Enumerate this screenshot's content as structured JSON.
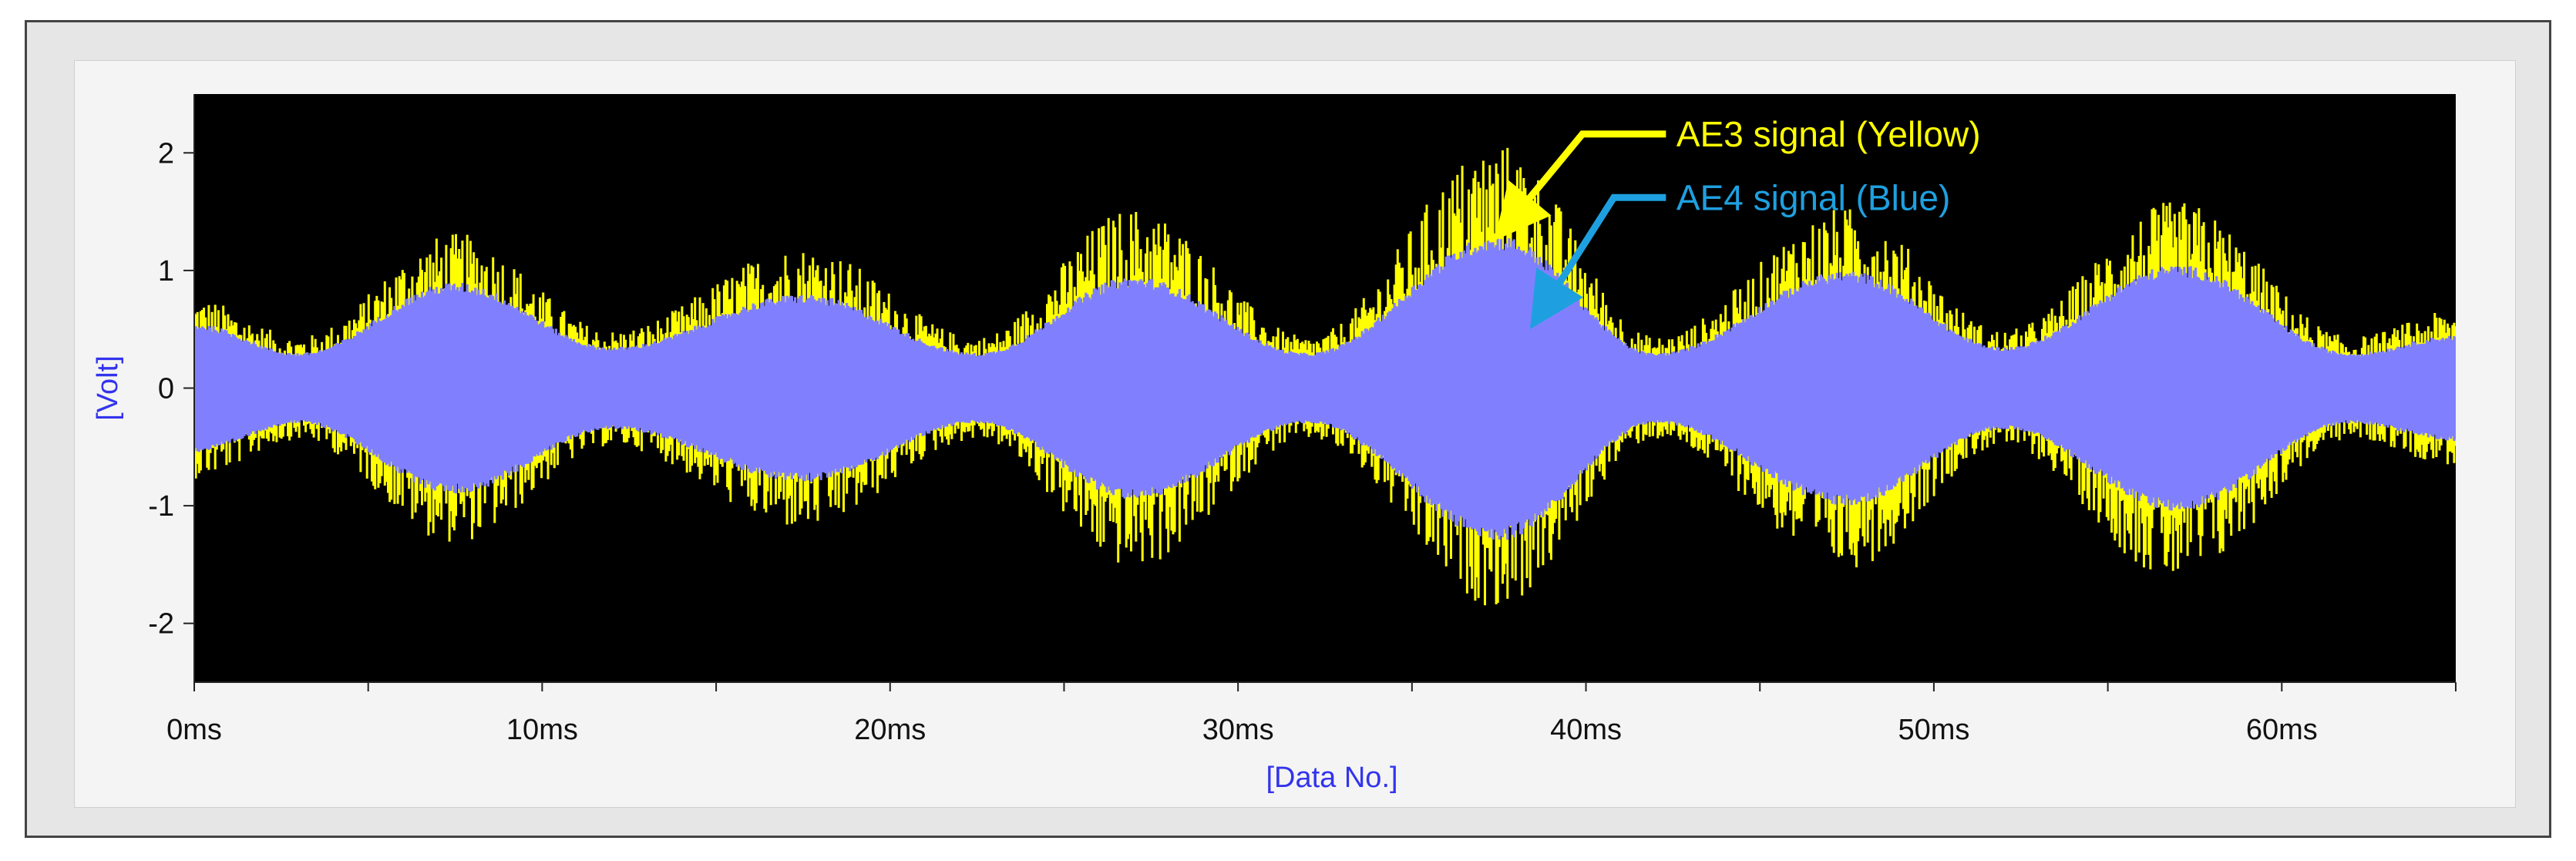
{
  "chart_data": {
    "type": "line",
    "title": "",
    "xlabel": "[Data No.]",
    "ylabel": "[Volt]",
    "xlim": [
      0,
      65
    ],
    "ylim": [
      -2.5,
      2.5
    ],
    "x_unit": "ms",
    "x_ticks": [
      0,
      10,
      20,
      30,
      40,
      50,
      60
    ],
    "x_tick_labels": [
      "0ms",
      "10ms",
      "20ms",
      "30ms",
      "40ms",
      "50ms",
      "60ms"
    ],
    "y_ticks": [
      2,
      1,
      0,
      -1,
      -2
    ],
    "y_tick_labels": [
      "2",
      "1",
      "0",
      "-1",
      "-2"
    ],
    "grid": false,
    "background_color": "#000000",
    "series": [
      {
        "name": "AE3 signal (Yellow)",
        "color": "#ffff00",
        "envelope_x": [
          0,
          3,
          7.5,
          12,
          17.5,
          22.5,
          27,
          32,
          37.5,
          42,
          47.5,
          52,
          57,
          62,
          65
        ],
        "envelope_upper": [
          0.7,
          0.4,
          1.2,
          0.45,
          1.1,
          0.4,
          1.4,
          0.4,
          1.9,
          0.4,
          1.4,
          0.45,
          1.45,
          0.4,
          0.6
        ],
        "envelope_lower": [
          -0.7,
          -0.4,
          -1.2,
          -0.45,
          -1.1,
          -0.4,
          -1.4,
          -0.4,
          -1.7,
          -0.4,
          -1.4,
          -0.45,
          -1.5,
          -0.4,
          -0.6
        ]
      },
      {
        "name": "AE4 signal (Blue)",
        "color": "#8080ff",
        "envelope_x": [
          0,
          3,
          7.5,
          12,
          17.5,
          22.5,
          27,
          32,
          37.5,
          42,
          47.5,
          52,
          57,
          62,
          65
        ],
        "envelope_upper": [
          0.55,
          0.3,
          0.9,
          0.35,
          0.8,
          0.3,
          0.95,
          0.3,
          1.3,
          0.3,
          1.0,
          0.35,
          1.05,
          0.3,
          0.45
        ],
        "envelope_lower": [
          -0.55,
          -0.3,
          -0.9,
          -0.35,
          -0.8,
          -0.3,
          -0.95,
          -0.3,
          -1.3,
          -0.3,
          -1.0,
          -0.35,
          -1.05,
          -0.3,
          -0.45
        ]
      }
    ],
    "annotations": [
      {
        "text": "AE3 signal (Yellow)",
        "color": "#ffff00",
        "target_x": 37.5,
        "target_y": 1.3
      },
      {
        "text": "AE4 signal (Blue)",
        "color": "#1ea0e0",
        "target_x": 38.5,
        "target_y": 0.55
      }
    ]
  }
}
